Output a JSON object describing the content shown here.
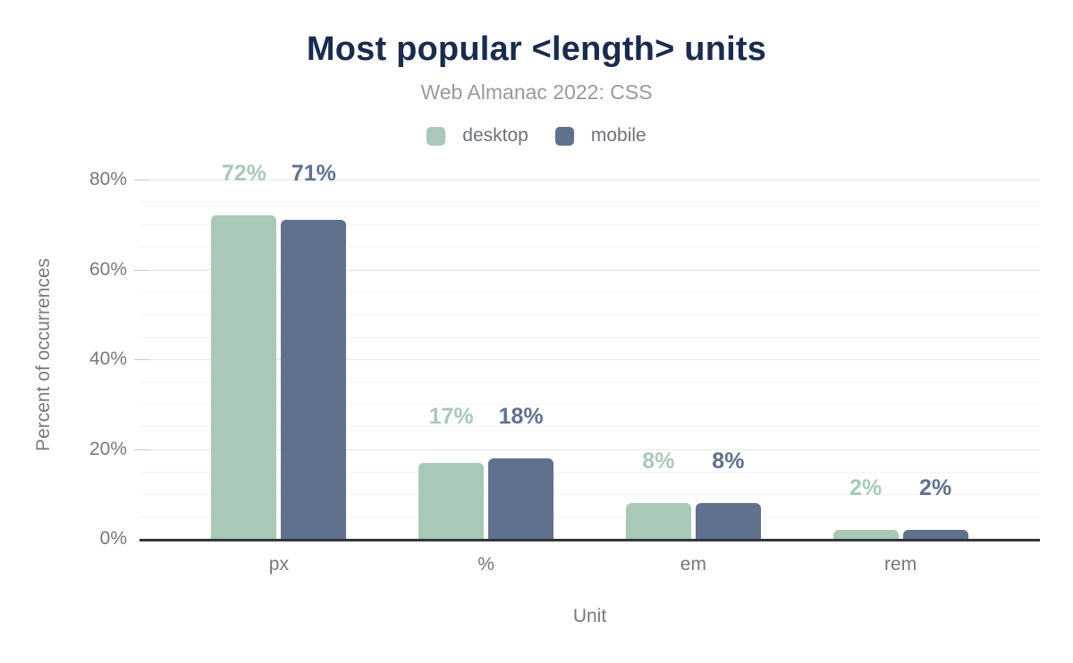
{
  "header": {
    "title": "Most popular <length> units",
    "subtitle": "Web Almanac 2022: CSS"
  },
  "legend": {
    "items": [
      {
        "label": "desktop",
        "color": "#a9c8b8"
      },
      {
        "label": "mobile",
        "color": "#60718d"
      }
    ]
  },
  "axes": {
    "x_title": "Unit",
    "y_title": "Percent of occurrences"
  },
  "colors": {
    "title_text": "#1b2b4d",
    "subtitle_text": "#97999c",
    "axis_text": "#75797f",
    "legend_text": "#6d7278",
    "grid_minor": "#f4f4f5",
    "grid_major": "#e4e5e7",
    "tick": "#c6c9cd",
    "baseline": "#35363b",
    "background": "#ffffff"
  },
  "chart_data": {
    "type": "bar",
    "title": "Most popular <length> units",
    "subtitle": "Web Almanac 2022: CSS",
    "categories": [
      "px",
      "%",
      "em",
      "rem"
    ],
    "series": [
      {
        "name": "desktop",
        "color": "#a9c8b8",
        "values": [
          72,
          17,
          8,
          2
        ],
        "labels": [
          "72%",
          "17%",
          "8%",
          "2%"
        ]
      },
      {
        "name": "mobile",
        "color": "#60718d",
        "values": [
          71,
          18,
          8,
          2
        ],
        "labels": [
          "71%",
          "18%",
          "8%",
          "2%"
        ]
      }
    ],
    "xlabel": "Unit",
    "ylabel": "Percent of occurrences",
    "ylim": [
      0,
      80
    ],
    "yticks": [
      0,
      20,
      40,
      60,
      80
    ],
    "ytick_labels": [
      "0%",
      "20%",
      "40%",
      "60%",
      "80%"
    ],
    "grid": {
      "horizontal": true,
      "minor_step": 5,
      "major_step": 20
    },
    "legend_position": "top",
    "value_labels_shown": true
  }
}
